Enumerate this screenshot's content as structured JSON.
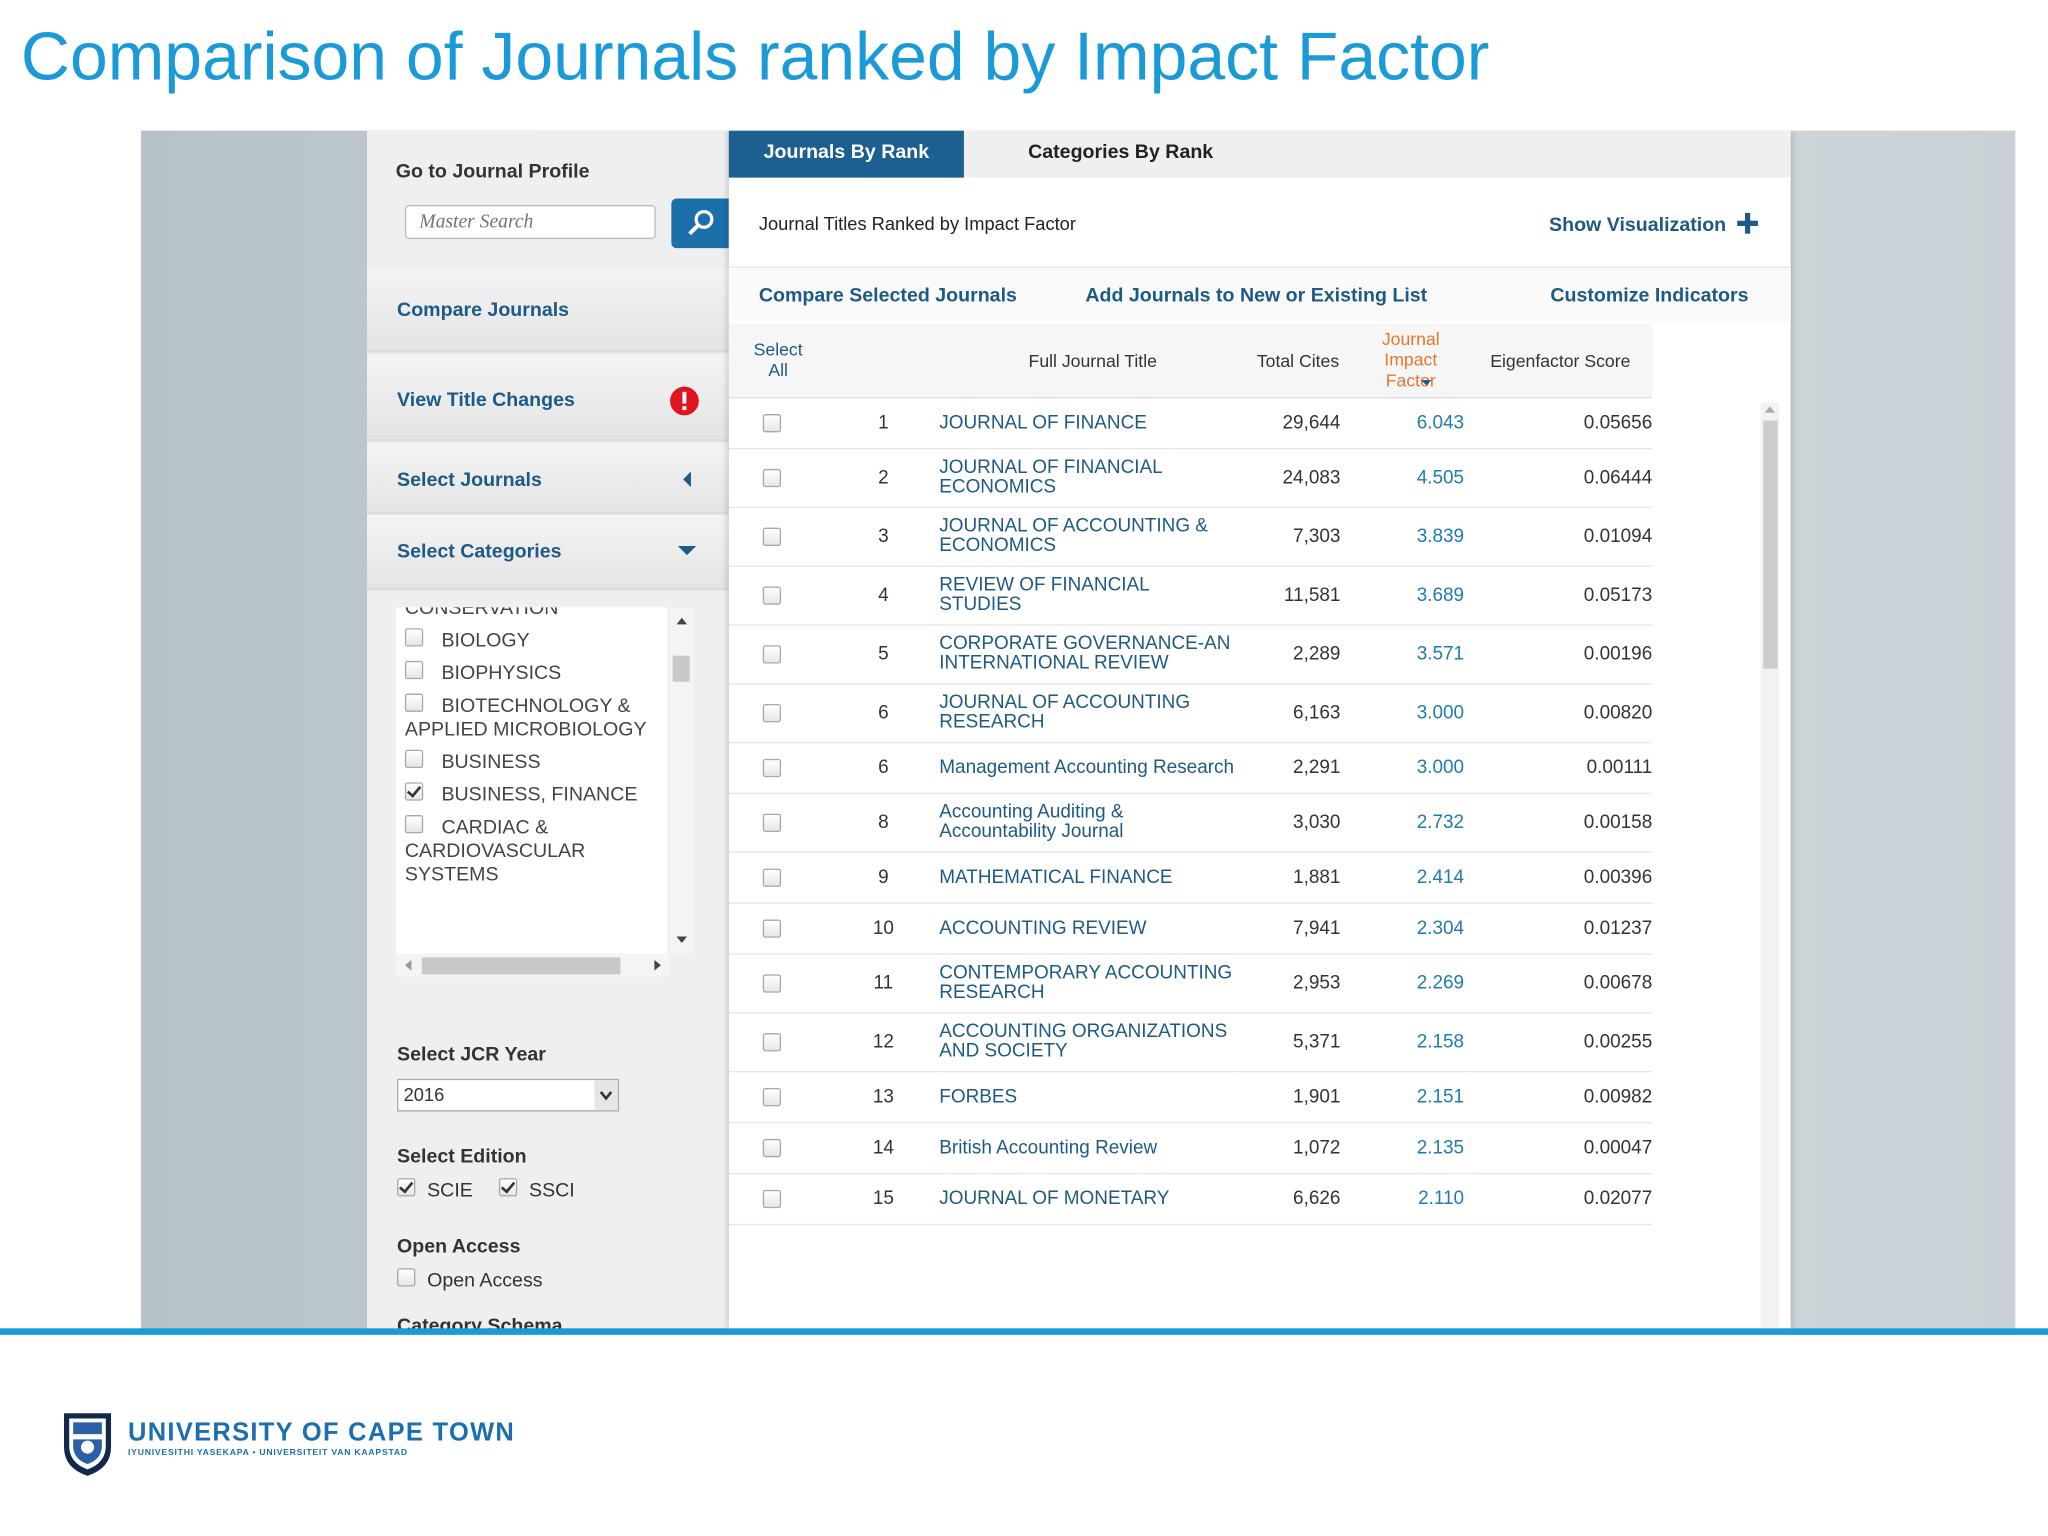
{
  "title": "Comparison of Journals ranked by Impact Factor",
  "sidebar": {
    "go_to_label": "Go to Journal Profile",
    "search_placeholder": "Master Search",
    "compare": "Compare Journals",
    "title_changes": "View Title Changes",
    "select_journals": "Select Journals",
    "select_categories": "Select Categories",
    "categories": [
      {
        "label": "CONSERVATION",
        "checked": false
      },
      {
        "label": "BIOLOGY",
        "checked": false
      },
      {
        "label": "BIOPHYSICS",
        "checked": false
      },
      {
        "label": "BIOTECHNOLOGY & APPLIED MICROBIOLOGY",
        "checked": false
      },
      {
        "label": "BUSINESS",
        "checked": false
      },
      {
        "label": "BUSINESS, FINANCE",
        "checked": true
      },
      {
        "label": "CARDIAC & CARDIOVASCULAR SYSTEMS",
        "checked": false
      }
    ],
    "jcr_year_label": "Select JCR Year",
    "jcr_year": "2016",
    "edition_label": "Select Edition",
    "editions": [
      {
        "label": "SCIE",
        "checked": true
      },
      {
        "label": "SSCI",
        "checked": true
      }
    ],
    "open_access_label": "Open Access",
    "open_access_option": {
      "label": "Open Access",
      "checked": false
    },
    "category_schema": "Category Schema"
  },
  "tabs": [
    "Journals By Rank",
    "Categories By Rank"
  ],
  "heading": "Journal Titles Ranked by Impact Factor",
  "show_visualization": "Show Visualization",
  "actions": [
    "Compare Selected Journals",
    "Add Journals to New or Existing List",
    "Customize Indicators"
  ],
  "table": {
    "columns": [
      "Select All",
      "Full Journal Title",
      "Total Cites",
      "Journal Impact Factor",
      "Eigenfactor Score"
    ],
    "rows": [
      [
        "1",
        "JOURNAL OF FINANCE",
        "29,644",
        "6.043",
        "0.05656"
      ],
      [
        "2",
        "JOURNAL OF FINANCIAL ECONOMICS",
        "24,083",
        "4.505",
        "0.06444"
      ],
      [
        "3",
        "JOURNAL OF ACCOUNTING & ECONOMICS",
        "7,303",
        "3.839",
        "0.01094"
      ],
      [
        "4",
        "REVIEW OF FINANCIAL STUDIES",
        "11,581",
        "3.689",
        "0.05173"
      ],
      [
        "5",
        "CORPORATE GOVERNANCE-AN INTERNATIONAL REVIEW",
        "2,289",
        "3.571",
        "0.00196"
      ],
      [
        "6",
        "JOURNAL OF ACCOUNTING RESEARCH",
        "6,163",
        "3.000",
        "0.00820"
      ],
      [
        "6",
        "Management Accounting Research",
        "2,291",
        "3.000",
        "0.00111"
      ],
      [
        "8",
        "Accounting Auditing & Accountability Journal",
        "3,030",
        "2.732",
        "0.00158"
      ],
      [
        "9",
        "MATHEMATICAL FINANCE",
        "1,881",
        "2.414",
        "0.00396"
      ],
      [
        "10",
        "ACCOUNTING REVIEW",
        "7,941",
        "2.304",
        "0.01237"
      ],
      [
        "11",
        "CONTEMPORARY ACCOUNTING RESEARCH",
        "2,953",
        "2.269",
        "0.00678"
      ],
      [
        "12",
        "ACCOUNTING ORGANIZATIONS AND SOCIETY",
        "5,371",
        "2.158",
        "0.00255"
      ],
      [
        "13",
        "FORBES",
        "1,901",
        "2.151",
        "0.00982"
      ],
      [
        "14",
        "British Accounting Review",
        "1,072",
        "2.135",
        "0.00047"
      ],
      [
        "15",
        "JOURNAL OF MONETARY",
        "6,626",
        "2.110",
        "0.02077"
      ]
    ]
  },
  "footer": {
    "university": "UNIVERSITY OF CAPE TOWN",
    "tagline": "IYUNIVESITHI YASEKAPA • UNIVERSITEIT VAN KAAPSTAD"
  }
}
